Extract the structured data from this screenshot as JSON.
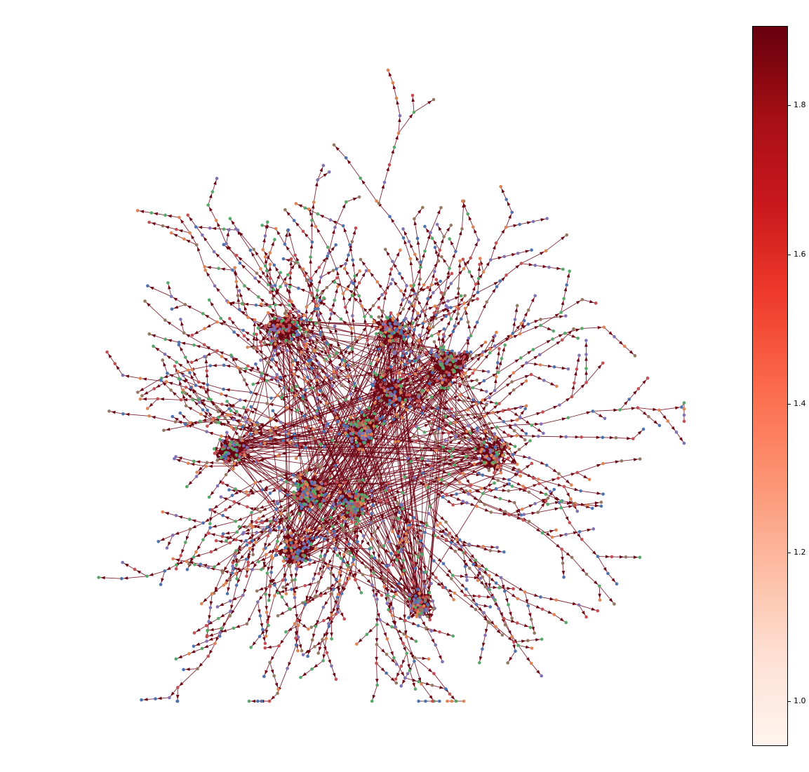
{
  "figure": {
    "type": "network-graph",
    "node_colors": [
      "#4c72b0",
      "#dd8452",
      "#55a868",
      "#c44e52",
      "#8172b3",
      "#937860"
    ],
    "edge_color": "#6b0010"
  },
  "colorbar": {
    "colormap": "Reds",
    "range": [
      0.94,
      1.9
    ],
    "gradient_stops": [
      "#fff5f0",
      "#fee0d2",
      "#fcbba1",
      "#fc9272",
      "#fb6a4a",
      "#ef3b2c",
      "#cb181d",
      "#a50f15",
      "#67000d"
    ],
    "ticks": [
      {
        "value": 1.0,
        "label": "1.0"
      },
      {
        "value": 1.2,
        "label": "1.2"
      },
      {
        "value": 1.4,
        "label": "1.4"
      },
      {
        "value": 1.6,
        "label": "1.6"
      },
      {
        "value": 1.8,
        "label": "1.8"
      }
    ]
  }
}
